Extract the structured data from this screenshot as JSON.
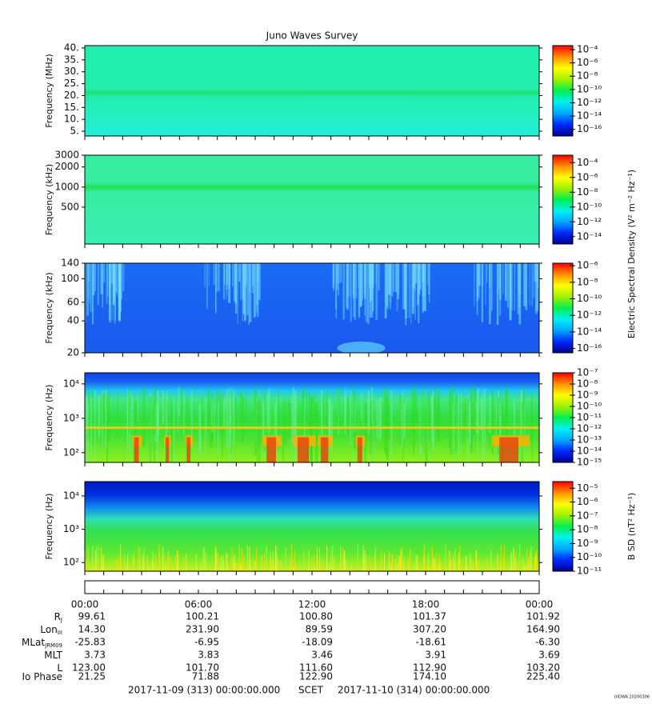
{
  "chart_data": [
    {
      "type": "spectrogram",
      "title": "Juno Waves Survey",
      "ylabel": "Frequency (MHz)",
      "log": false,
      "ylim": [
        3,
        41
      ],
      "yticks": [
        {
          "value": 5,
          "label": "5."
        },
        {
          "value": 10,
          "label": "10."
        },
        {
          "value": 15,
          "label": "15."
        },
        {
          "value": 20,
          "label": "20."
        },
        {
          "value": 25,
          "label": "25."
        },
        {
          "value": 30,
          "label": "30."
        },
        {
          "value": 35,
          "label": "35."
        },
        {
          "value": 40,
          "label": "40."
        }
      ],
      "clim": [
        1e-17,
        0.0004
      ],
      "cticks": [
        {
          "value": 0.0001,
          "label": "10⁻⁴"
        },
        {
          "value": 1e-06,
          "label": "10⁻⁶"
        },
        {
          "value": 1e-08,
          "label": "10⁻⁸"
        },
        {
          "value": 1e-10,
          "label": "10⁻¹⁰"
        },
        {
          "value": 1e-12,
          "label": "10⁻¹²"
        },
        {
          "value": 1e-14,
          "label": "10⁻¹⁴"
        },
        {
          "value": 1e-16,
          "label": "10⁻¹⁶"
        }
      ]
    },
    {
      "type": "spectrogram",
      "ylabel": "Frequency (kHz)",
      "log": true,
      "ylim": [
        140,
        3000
      ],
      "yticks": [
        500,
        1000,
        2000,
        3000
      ],
      "clim": [
        1e-15,
        0.001
      ],
      "cticks": [
        {
          "value": 0.0001,
          "label": "10⁻⁴"
        },
        {
          "value": 1e-06,
          "label": "10⁻⁶"
        },
        {
          "value": 1e-08,
          "label": "10⁻⁸"
        },
        {
          "value": 1e-10,
          "label": "10⁻¹⁰"
        },
        {
          "value": 1e-12,
          "label": "10⁻¹²"
        },
        {
          "value": 1e-14,
          "label": "10⁻¹⁴"
        }
      ],
      "colorbar_label": "Electric Spectral Density (V² m⁻² Hz⁻¹)"
    },
    {
      "type": "spectrogram",
      "ylabel": "Frequency (kHz)",
      "log": true,
      "ylim": [
        20,
        140
      ],
      "yticks": [
        20,
        40,
        60,
        100,
        140
      ],
      "clim": [
        3e-17,
        2e-06
      ],
      "cticks": [
        {
          "value": 1e-06,
          "label": "10⁻⁶"
        },
        {
          "value": 1e-08,
          "label": "10⁻⁸"
        },
        {
          "value": 1e-10,
          "label": "10⁻¹⁰"
        },
        {
          "value": 1e-12,
          "label": "10⁻¹²"
        },
        {
          "value": 1e-14,
          "label": "10⁻¹⁴"
        },
        {
          "value": 1e-16,
          "label": "10⁻¹⁶"
        }
      ]
    },
    {
      "type": "spectrogram",
      "ylabel": "Frequency (Hz)",
      "log": true,
      "ylim": [
        52,
        21000
      ],
      "yticks": [
        {
          "value": 100,
          "label": "10²"
        },
        {
          "value": 1000,
          "label": "10³"
        },
        {
          "value": 10000,
          "label": "10⁴"
        }
      ],
      "clim": [
        1e-15,
        1e-07
      ],
      "cticks": [
        {
          "value": 1e-07,
          "label": "10⁻⁷"
        },
        {
          "value": 1e-08,
          "label": "10⁻⁸"
        },
        {
          "value": 1e-09,
          "label": "10⁻⁹"
        },
        {
          "value": 1e-10,
          "label": "10⁻¹⁰"
        },
        {
          "value": 1e-11,
          "label": "10⁻¹¹"
        },
        {
          "value": 1e-12,
          "label": "10⁻¹²"
        },
        {
          "value": 1e-13,
          "label": "10⁻¹³"
        },
        {
          "value": 1e-14,
          "label": "10⁻¹⁴"
        },
        {
          "value": 1e-15,
          "label": "10⁻¹⁵"
        }
      ]
    },
    {
      "type": "spectrogram",
      "ylabel": "Frequency (Hz)",
      "log": true,
      "ylim": [
        55,
        27000
      ],
      "yticks": [
        {
          "value": 100,
          "label": "10²"
        },
        {
          "value": 1000,
          "label": "10³"
        },
        {
          "value": 10000,
          "label": "10⁴"
        }
      ],
      "clim": [
        1e-11,
        3e-05
      ],
      "cticks": [
        {
          "value": 1e-05,
          "label": "10⁻⁵"
        },
        {
          "value": 1e-06,
          "label": "10⁻⁶"
        },
        {
          "value": 1e-07,
          "label": "10⁻⁷"
        },
        {
          "value": 1e-08,
          "label": "10⁻⁸"
        },
        {
          "value": 1e-09,
          "label": "10⁻⁹"
        },
        {
          "value": 1e-10,
          "label": "10⁻¹⁰"
        },
        {
          "value": 1e-11,
          "label": "10⁻¹¹"
        }
      ],
      "colorbar_label": "B SD (nT² Hz⁻¹)"
    }
  ],
  "colormap": [
    "#00008c",
    "#0028ff",
    "#00a8ff",
    "#00f0f0",
    "#00f050",
    "#a0f000",
    "#ffff00",
    "#ff9000",
    "#ff0000"
  ],
  "time_axis": {
    "xlim": [
      0,
      24
    ],
    "xticks": [
      0,
      1,
      2,
      3,
      4,
      5,
      6,
      7,
      8,
      9,
      10,
      11,
      12,
      13,
      14,
      15,
      16,
      17,
      18,
      19,
      20,
      21,
      22,
      23,
      24
    ],
    "xtick_labels": [
      {
        "value": 0,
        "label": "00:00"
      },
      {
        "value": 6,
        "label": "06:00"
      },
      {
        "value": 12,
        "label": "12:00"
      },
      {
        "value": 18,
        "label": "18:00"
      },
      {
        "value": 24,
        "label": "00:00"
      }
    ]
  },
  "ephemeris": {
    "rows": [
      {
        "label": "R",
        "sub": "J",
        "values": [
          "99.61",
          "100.21",
          "100.80",
          "101.37",
          "101.92"
        ]
      },
      {
        "label": "Lon",
        "sub": "III",
        "values": [
          "14.30",
          "231.90",
          "89.59",
          "307.20",
          "164.90"
        ]
      },
      {
        "label": "MLat",
        "sub": "JRM09",
        "values": [
          "-25.83",
          "-6.95",
          "-18.09",
          "-18.61",
          "-6.30"
        ]
      },
      {
        "label": "MLT",
        "values": [
          "3.73",
          "3.83",
          "3.46",
          "3.91",
          "3.69"
        ]
      },
      {
        "label": "L",
        "values": [
          "123.00",
          "101.70",
          "111.60",
          "112.90",
          "103.20"
        ]
      },
      {
        "label": "Io Phase",
        "values": [
          "21.25",
          "71.88",
          "122.90",
          "174.10",
          "225.40"
        ]
      }
    ]
  },
  "footer": {
    "start": "2017-11-09 (313) 00:00:00.000",
    "scale": "SCET",
    "end": "2017-11-10 (314) 00:00:00.000"
  },
  "credit": "UIOWA 20200306"
}
